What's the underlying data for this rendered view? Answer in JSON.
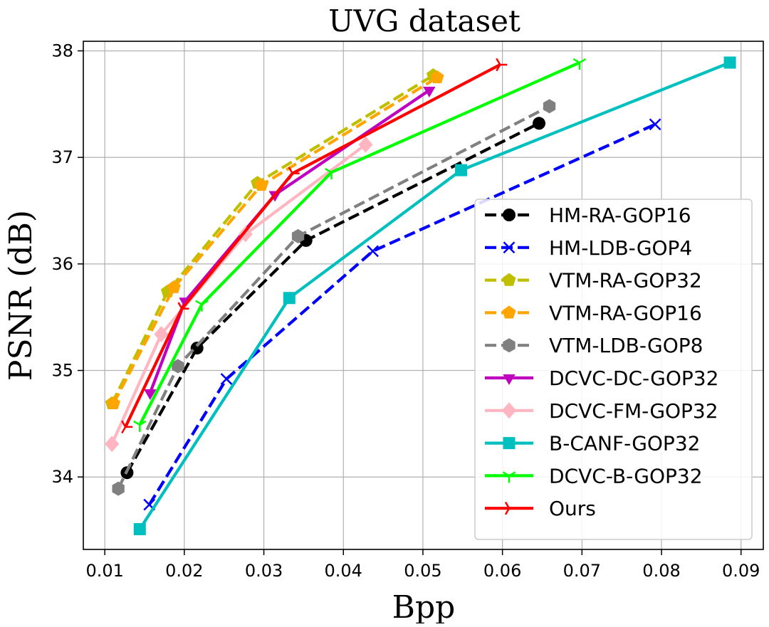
{
  "chart_data": {
    "type": "line",
    "title": "UVG dataset",
    "xlabel": "Bpp",
    "ylabel": "PSNR (dB)",
    "xlim": [
      0.0073,
      0.0928
    ],
    "ylim": [
      33.32,
      38.09
    ],
    "xticks": [
      0.01,
      0.02,
      0.03,
      0.04,
      0.05,
      0.06,
      0.07,
      0.08,
      0.09
    ],
    "xtick_labels": [
      "0.01",
      "0.02",
      "0.03",
      "0.04",
      "0.05",
      "0.06",
      "0.07",
      "0.08",
      "0.09"
    ],
    "yticks": [
      34,
      35,
      36,
      37,
      38
    ],
    "ytick_labels": [
      "34",
      "35",
      "36",
      "37",
      "38"
    ],
    "grid": true,
    "legend_position": "bottom-right",
    "series": [
      {
        "name": "HM-RA-GOP16",
        "color": "#000000",
        "dash": "dashed",
        "marker": "circle",
        "x": [
          0.0128,
          0.0216,
          0.0353,
          0.0646
        ],
        "y": [
          34.04,
          35.21,
          36.22,
          37.32
        ]
      },
      {
        "name": "HM-LDB-GOP4",
        "color": "#0000ff",
        "dash": "dashed",
        "marker": "x",
        "x": [
          0.0156,
          0.0253,
          0.0437,
          0.0792
        ],
        "y": [
          33.74,
          34.92,
          36.12,
          37.31
        ]
      },
      {
        "name": "VTM-RA-GOP32",
        "color": "#bfbf00",
        "dash": "dashed",
        "marker": "pentagon",
        "x": [
          0.0109,
          0.0179,
          0.0292,
          0.0513
        ],
        "y": [
          34.69,
          35.74,
          36.76,
          37.77
        ]
      },
      {
        "name": "VTM-RA-GOP16",
        "color": "#ffa500",
        "dash": "dashed",
        "marker": "pentagon",
        "x": [
          0.0111,
          0.0187,
          0.0297,
          0.0518
        ],
        "y": [
          34.69,
          35.78,
          36.74,
          37.75
        ]
      },
      {
        "name": "VTM-LDB-GOP8",
        "color": "#808080",
        "dash": "dashed",
        "marker": "hexagon",
        "x": [
          0.0117,
          0.0192,
          0.0343,
          0.0659
        ],
        "y": [
          33.89,
          35.04,
          36.26,
          37.48
        ]
      },
      {
        "name": "DCVC-DC-GOP32",
        "color": "#bf00bf",
        "dash": "solid",
        "marker": "triangle-down",
        "x": [
          0.0157,
          0.0201,
          0.0314,
          0.0508
        ],
        "y": [
          34.79,
          35.65,
          36.65,
          37.63
        ]
      },
      {
        "name": "DCVC-FM-GOP32",
        "color": "#ffb6c1",
        "dash": "solid",
        "marker": "diamond",
        "x": [
          0.0109,
          0.0171,
          0.0277,
          0.0428
        ],
        "y": [
          34.31,
          35.34,
          36.28,
          37.12
        ]
      },
      {
        "name": "B-CANF-GOP32",
        "color": "#00bfbf",
        "dash": "solid",
        "marker": "square",
        "x": [
          0.0144,
          0.0332,
          0.0548,
          0.0886
        ],
        "y": [
          33.51,
          35.68,
          36.88,
          37.89
        ]
      },
      {
        "name": "DCVC-B-GOP32",
        "color": "#00ff00",
        "dash": "solid",
        "marker": "tri-down",
        "x": [
          0.0144,
          0.0222,
          0.0385,
          0.0697
        ],
        "y": [
          34.49,
          35.62,
          36.86,
          37.89
        ]
      },
      {
        "name": "Ours",
        "color": "#ff0000",
        "dash": "solid",
        "marker": "tri-right",
        "x": [
          0.0126,
          0.0197,
          0.0336,
          0.0597
        ],
        "y": [
          34.47,
          35.58,
          36.85,
          37.87
        ]
      }
    ]
  }
}
